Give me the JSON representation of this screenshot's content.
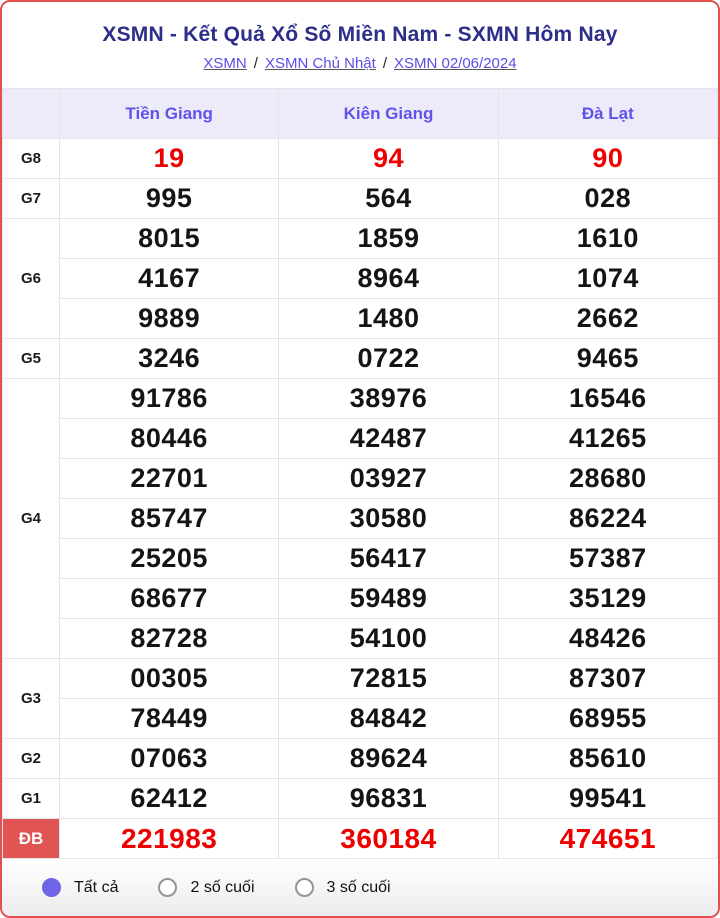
{
  "header": {
    "title": "XSMN - Kết Quả Xổ Số Miền Nam - SXMN Hôm Nay",
    "breadcrumb": [
      {
        "label": "XSMN"
      },
      {
        "label": "XSMN Chủ Nhật"
      },
      {
        "label": "XSMN 02/06/2024"
      }
    ],
    "separator": "/"
  },
  "table": {
    "columns": [
      "Tiền Giang",
      "Kiên Giang",
      "Đà Lạt"
    ],
    "rows": [
      {
        "label": "G8",
        "shade": true,
        "red": true,
        "special": false,
        "lines": [
          [
            "19",
            "94",
            "90"
          ]
        ]
      },
      {
        "label": "G7",
        "shade": false,
        "red": false,
        "special": false,
        "lines": [
          [
            "995",
            "564",
            "028"
          ]
        ]
      },
      {
        "label": "G6",
        "shade": true,
        "red": false,
        "special": false,
        "lines": [
          [
            "8015",
            "1859",
            "1610"
          ],
          [
            "4167",
            "8964",
            "1074"
          ],
          [
            "9889",
            "1480",
            "2662"
          ]
        ]
      },
      {
        "label": "G5",
        "shade": false,
        "red": false,
        "special": false,
        "lines": [
          [
            "3246",
            "0722",
            "9465"
          ]
        ]
      },
      {
        "label": "G4",
        "shade": true,
        "red": false,
        "special": false,
        "lines": [
          [
            "91786",
            "38976",
            "16546"
          ],
          [
            "80446",
            "42487",
            "41265"
          ],
          [
            "22701",
            "03927",
            "28680"
          ],
          [
            "85747",
            "30580",
            "86224"
          ],
          [
            "25205",
            "56417",
            "57387"
          ],
          [
            "68677",
            "59489",
            "35129"
          ],
          [
            "82728",
            "54100",
            "48426"
          ]
        ]
      },
      {
        "label": "G3",
        "shade": false,
        "red": false,
        "special": false,
        "lines": [
          [
            "00305",
            "72815",
            "87307"
          ],
          [
            "78449",
            "84842",
            "68955"
          ]
        ]
      },
      {
        "label": "G2",
        "shade": true,
        "red": false,
        "special": false,
        "lines": [
          [
            "07063",
            "89624",
            "85610"
          ]
        ]
      },
      {
        "label": "G1",
        "shade": false,
        "red": false,
        "special": false,
        "lines": [
          [
            "62412",
            "96831",
            "99541"
          ]
        ]
      },
      {
        "label": "ĐB",
        "shade": true,
        "red": true,
        "special": true,
        "lines": [
          [
            "221983",
            "360184",
            "474651"
          ]
        ]
      }
    ]
  },
  "filters": {
    "options": [
      {
        "label": "Tất cả",
        "selected": true
      },
      {
        "label": "2 số cuối",
        "selected": false
      },
      {
        "label": "3 số cuối",
        "selected": false
      }
    ]
  },
  "colors": {
    "card_border": "#e0514f",
    "title_text": "#2d2d8a",
    "link_text": "#5a4ee8",
    "header_bg": "#edeafa",
    "header_text": "#5f54ea",
    "shade_row_bg": "#f5f5f5",
    "value_text": "#141414",
    "highlight_red": "#ee0000",
    "special_label_bg": "#e05454",
    "radio_selected": "#6f63e8"
  }
}
